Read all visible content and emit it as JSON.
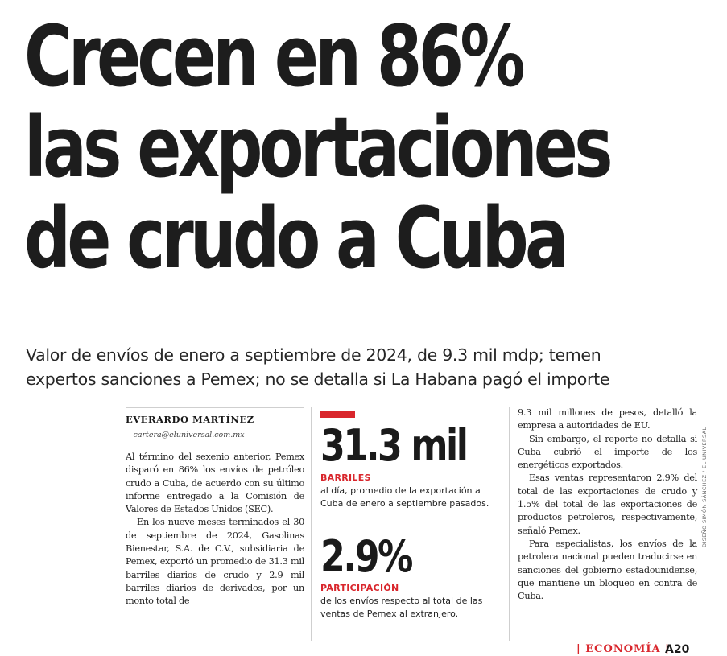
{
  "headline": {
    "lines": [
      "Crecen en 86%",
      "las exportaciones",
      "de crudo a Cuba"
    ]
  },
  "subheadline": {
    "lines": [
      "Valor de envíos de enero a septiembre de 2024, de 9.3 mil mdp; temen",
      "expertos sanciones a Pemex; no se detalla si La Habana pagó el importe"
    ]
  },
  "byline": {
    "author": "EVERARDO MARTÍNEZ",
    "email": "—cartera@eluniversal.com.mx"
  },
  "column1": {
    "paragraphs": [
      "Al término del sexenio anterior, Pemex disparó en 86% los envíos de petróleo crudo a Cuba, de acuerdo con su último informe entregado a la Comisión de Valores de Estados Unidos (SEC).",
      "En los nueve meses terminados el 30 de septiembre de 2024, Gasolinas Bienestar, S.A. de C.V., subsidiaria de Pemex, exportó un promedio de 31.3 mil barriles diarios de crudo y 2.9 mil barriles diarios de derivados, por un monto total de"
    ]
  },
  "stats": [
    {
      "value": "31.3 mil",
      "label": "BARRILES",
      "description": "al día, promedio de la exportación a Cuba de enero a septiembre pasados."
    },
    {
      "value": "2.9%",
      "label": "PARTICIPACIÓN",
      "description": "de los envíos respecto al total de las ventas de Pemex al extranjero."
    }
  ],
  "column3": {
    "paragraphs": [
      "9.3 mil millones de pesos, detalló la empresa a autoridades de EU.",
      "Sin embargo, el reporte no detalla si Cuba cubrió el importe de los energéticos exportados.",
      "Esas ventas representaron 2.9% del total de las exportaciones de crudo y 1.5% del total de las exportaciones de productos petroleros, respectivamente, señaló Pemex.",
      "Para especialistas, los envíos de la petrolera nacional pueden traducirse en sanciones del gobierno estadounidense, que mantiene un bloqueo en contra de Cuba."
    ]
  },
  "footer": {
    "section": "| ECONOMÍA |",
    "page": "A20"
  },
  "photo_credit": "DISEÑO SIMÓN SÁNCHEZ / EL UNIVERSAL",
  "colors": {
    "accent": "#d9262c",
    "text": "#1a1a1a"
  }
}
